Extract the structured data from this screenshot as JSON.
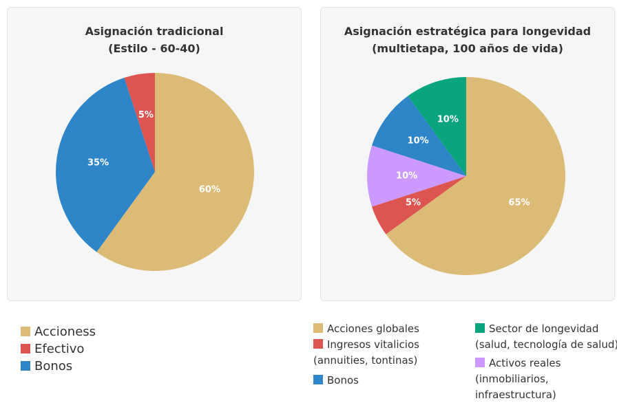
{
  "chart_data": [
    {
      "type": "pie",
      "title": [
        "Asignación tradicional",
        "(Estilo - 60-40)"
      ],
      "categories": [
        "Accioness",
        "Bonos",
        "Efectivo"
      ],
      "values": [
        60,
        35,
        5
      ],
      "value_labels": [
        "60%",
        "35%",
        "5%"
      ],
      "colors": [
        "#dcbb77",
        "#2e86c8",
        "#dc5550"
      ]
    },
    {
      "type": "pie",
      "title": [
        "Asignación estratégica para longevidad",
        "(multietapa, 100 años de vida)"
      ],
      "categories": [
        "Acciones globales",
        "Ingresos vitalicios (annuities, tontinas)",
        "Activos reales (inmobiliarios, infraestructura)",
        "Bonos",
        "Sector de longevidad (salud, tecnología de salud)"
      ],
      "values": [
        65,
        5,
        10,
        10,
        10
      ],
      "value_labels": [
        "65%",
        "5%",
        "10%",
        "10%",
        "10%"
      ],
      "colors": [
        "#dcbb77",
        "#dc5550",
        "#cc99ff",
        "#2e86c8",
        "#0aa57f"
      ]
    }
  ]
}
